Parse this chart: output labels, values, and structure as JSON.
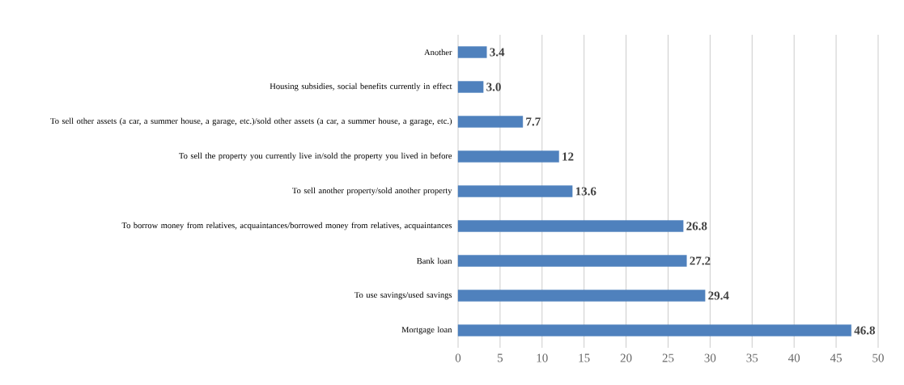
{
  "chart_data": {
    "type": "bar",
    "orientation": "horizontal",
    "categories": [
      "Another",
      "Housing subsidies, social benefits currently in effect",
      "To sell other assets (a car, a summer house, a garage, etc.)/sold other assets (a car, a summer house, a garage, etc.)",
      "To sell the property you currently live in/sold the property you lived in before",
      "To sell another property/sold another property",
      "To borrow money from relatives, acquaintances/borrowed money from relatives, acquaintances",
      "Bank loan",
      "To use savings/used savings",
      "Mortgage loan"
    ],
    "values": [
      3.4,
      3.0,
      7.7,
      12,
      13.6,
      26.8,
      27.2,
      29.4,
      46.8
    ],
    "value_labels": [
      "3.4",
      "3.0",
      "7.7",
      "12",
      "13.6",
      "26.8",
      "27.2",
      "29.4",
      "46.8"
    ],
    "color": "#4f81bd",
    "xlim": [
      0,
      50
    ],
    "xticks": [
      0,
      5,
      10,
      15,
      20,
      25,
      30,
      35,
      40,
      45,
      50
    ],
    "grid": "x"
  }
}
